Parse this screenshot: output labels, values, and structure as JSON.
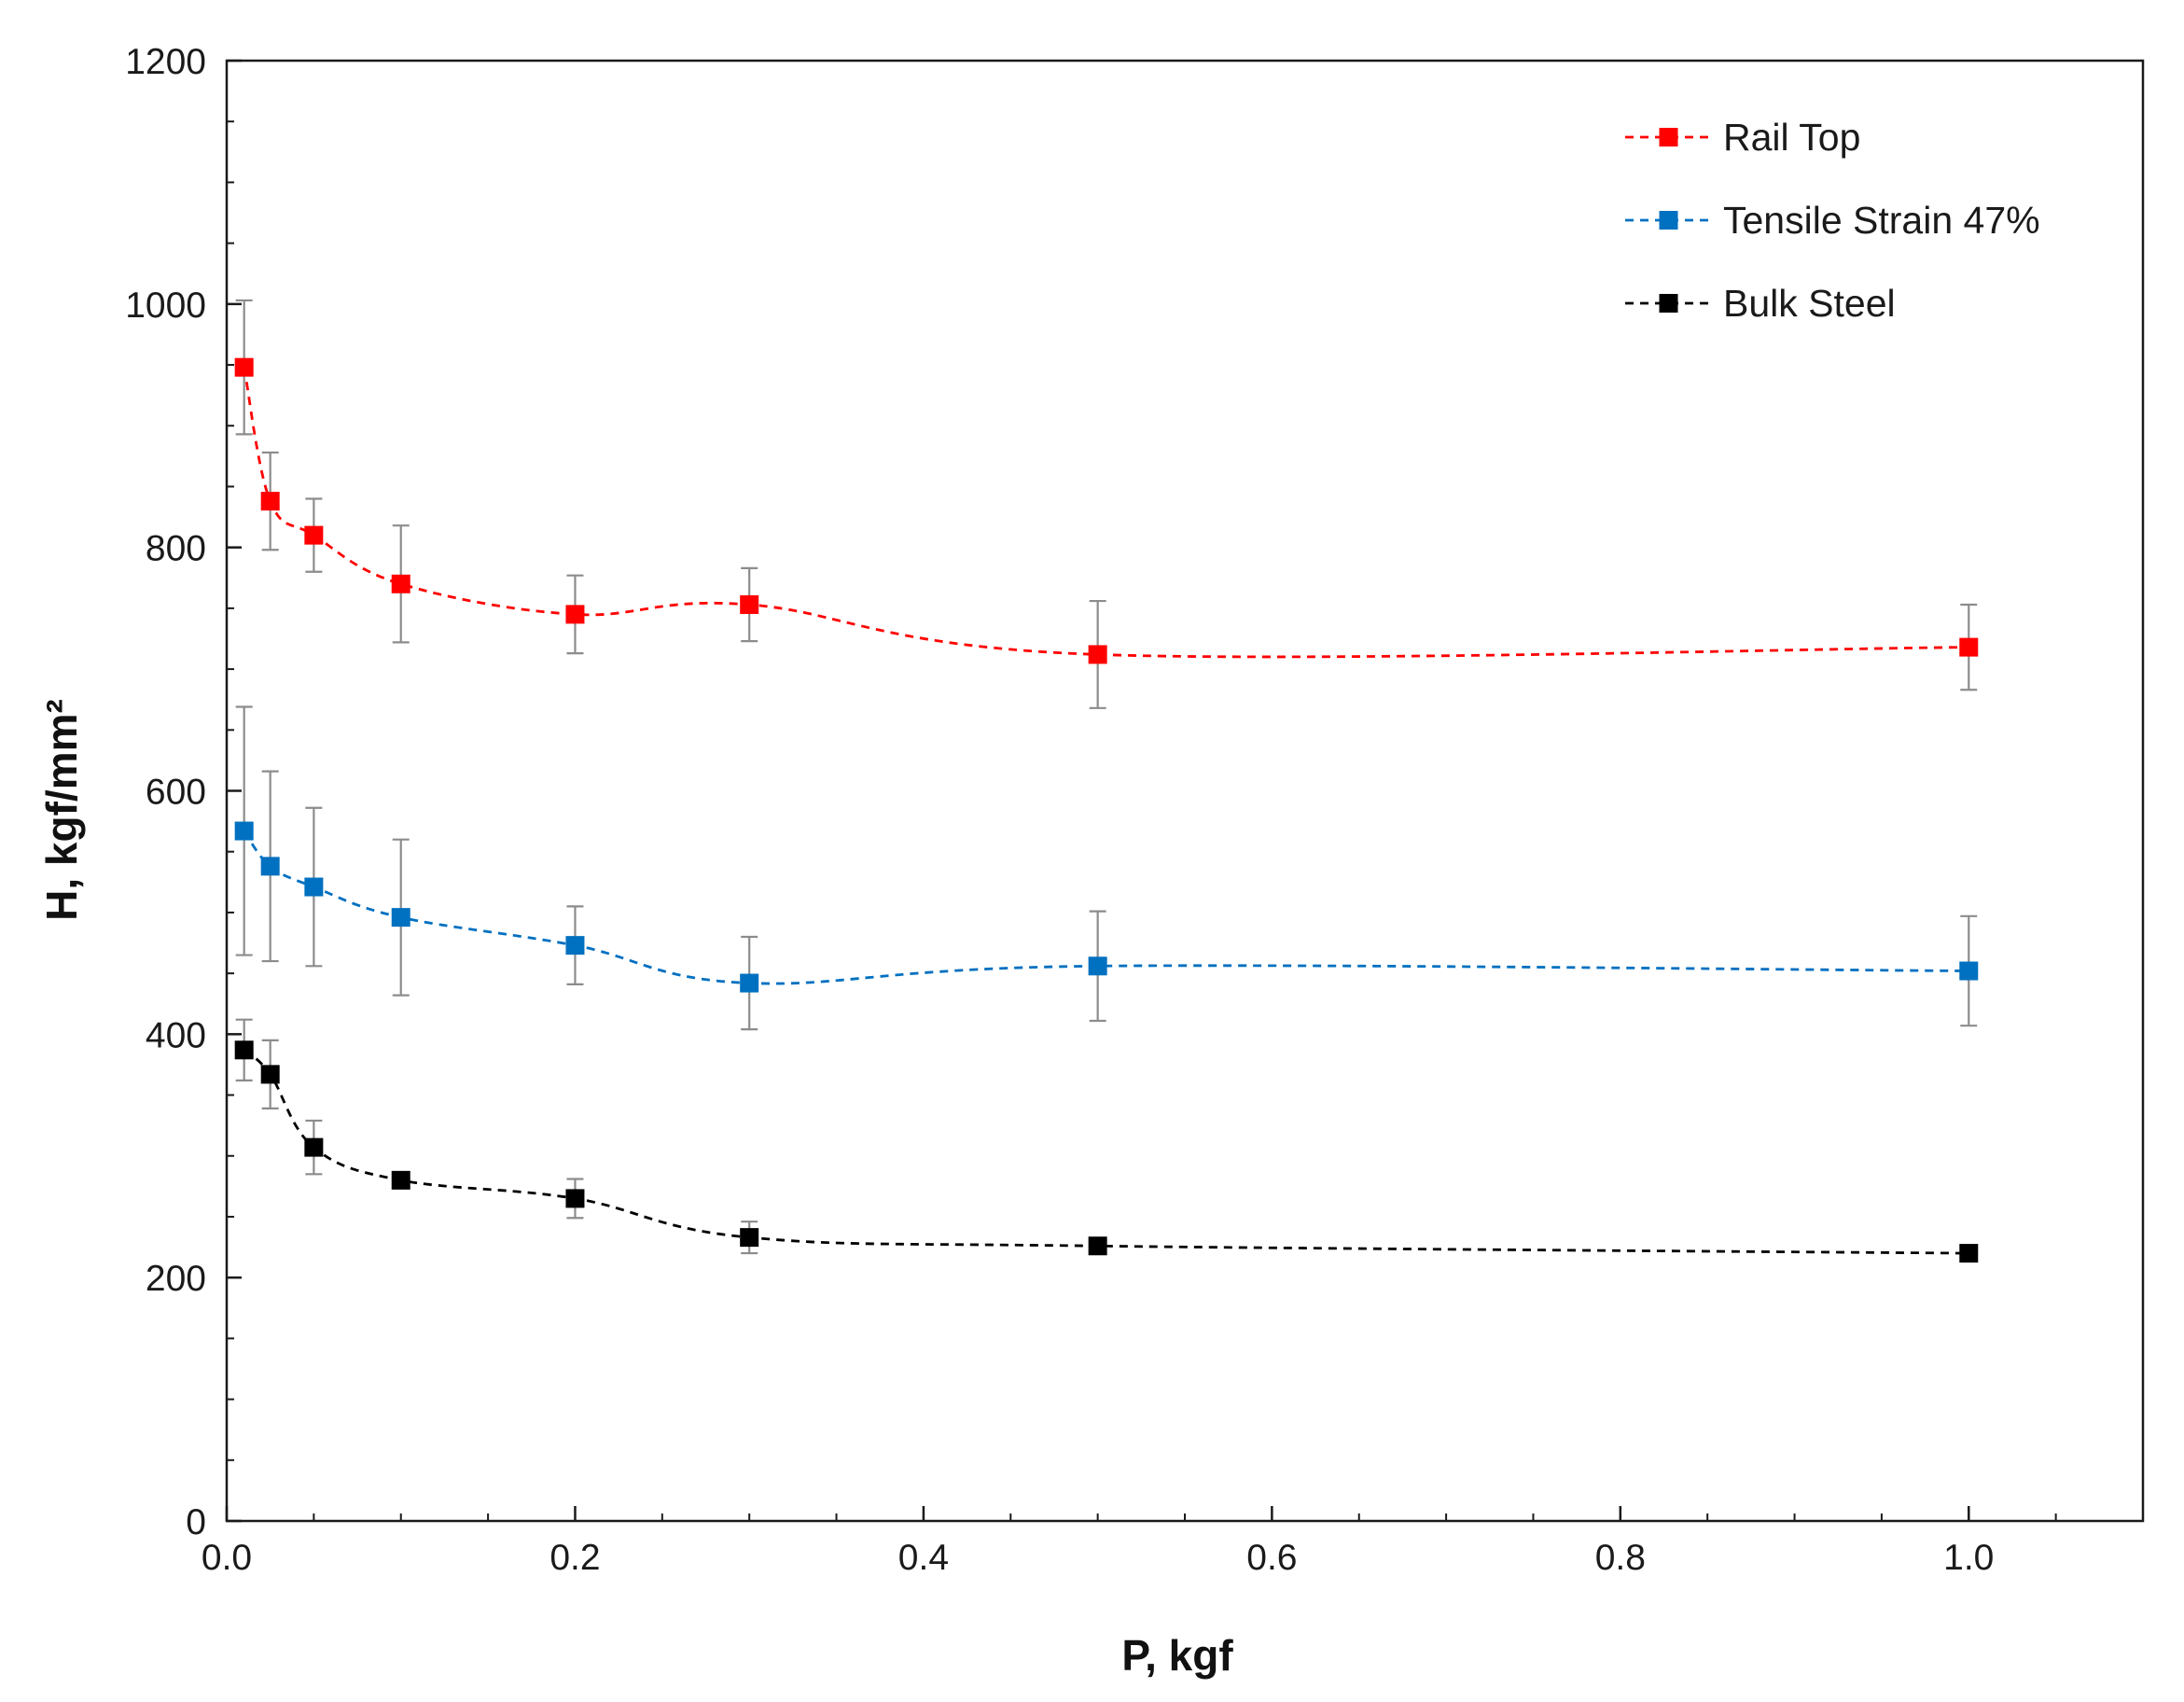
{
  "chart_data": {
    "type": "scatter",
    "title": "",
    "xlabel": "P, kgf",
    "ylabel": "H, kgf/mm²",
    "xlim": [
      0.0,
      1.1
    ],
    "ylim": [
      0,
      1200
    ],
    "x_ticks": [
      0.0,
      0.2,
      0.4,
      0.6,
      0.8,
      1.0
    ],
    "x_tick_labels": [
      "0.0",
      "0.2",
      "0.4",
      "0.6",
      "0.8",
      "1.0"
    ],
    "y_ticks": [
      0,
      200,
      400,
      600,
      800,
      1000,
      1200
    ],
    "y_tick_labels": [
      "0",
      "200",
      "400",
      "600",
      "800",
      "1000",
      "1200"
    ],
    "grid": false,
    "legend_position": "top-right",
    "x": [
      0.01,
      0.025,
      0.05,
      0.1,
      0.2,
      0.3,
      0.5,
      1.0
    ],
    "series": [
      {
        "name": "Rail Top",
        "color": "#ff0000",
        "values": [
          948,
          838,
          810,
          770,
          745,
          753,
          712,
          718
        ],
        "errors": [
          55,
          40,
          30,
          48,
          32,
          30,
          44,
          35
        ]
      },
      {
        "name": "Tensile Strain 47%",
        "color": "#0070c0",
        "values": [
          567,
          538,
          521,
          496,
          473,
          442,
          456,
          452
        ],
        "errors": [
          102,
          78,
          65,
          64,
          32,
          38,
          45,
          45
        ]
      },
      {
        "name": "Bulk Steel",
        "color": "#000000",
        "values": [
          387,
          367,
          307,
          280,
          265,
          233,
          226,
          220
        ],
        "errors": [
          25,
          28,
          22,
          6,
          16,
          13,
          6,
          6
        ]
      }
    ]
  }
}
